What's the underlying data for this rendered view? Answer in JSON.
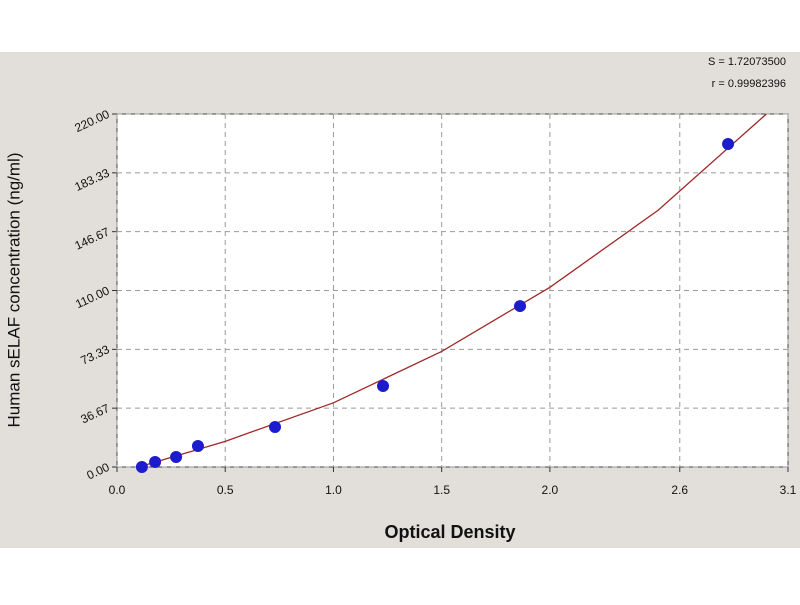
{
  "chart_data": {
    "type": "scatter",
    "ylabel": "Human sELAF concentration (ng/ml)",
    "xlabel": "Optical Density",
    "annotations": [
      "S = 1.72073500",
      "r = 0.99982396"
    ],
    "x": [
      0.115,
      0.176,
      0.273,
      0.374,
      0.73,
      1.229,
      1.862,
      2.823
    ],
    "y": [
      0,
      3.1,
      6.2,
      13.1,
      24.9,
      50.5,
      100.3,
      201.3
    ],
    "color": "#1c1ccc",
    "curve": {
      "x": [
        0.1,
        0.5,
        1.0,
        1.5,
        2.0,
        2.5,
        3.0
      ],
      "y": [
        0,
        16,
        40,
        72,
        112,
        160,
        220
      ]
    },
    "curve_color": "#a02828",
    "xlim": [
      0,
      3.1
    ],
    "ylim": [
      0,
      220
    ],
    "xticks": [
      {
        "value": 0,
        "label": "0.0"
      },
      0.5,
      {
        "value": 1,
        "label": "1.0"
      },
      1.5,
      {
        "value": 2,
        "label": "2.0"
      },
      2.6,
      3.1
    ],
    "yticks": [
      {
        "value": 0,
        "label": "0.00"
      },
      36.67,
      73.33,
      {
        "value": 110,
        "label": "110.00"
      },
      146.67,
      183.33,
      {
        "value": 220,
        "label": "220.00"
      }
    ],
    "grid": true
  }
}
